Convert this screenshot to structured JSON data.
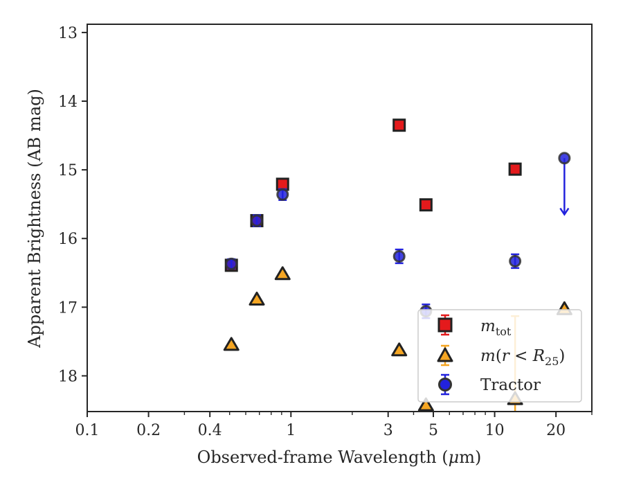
{
  "chart_data": {
    "type": "scatter",
    "xlabel": "Observed-frame Wavelength (μm)",
    "xlabel_parts": {
      "pre": "Observed-frame Wavelength (",
      "mu": "μ",
      "post": "m)"
    },
    "ylabel": "Apparent Brightness (AB mag)",
    "x_scale": "log",
    "xlim": [
      0.1,
      30
    ],
    "ylim": [
      18.52,
      12.88
    ],
    "y_inverted": true,
    "x_ticks": [
      {
        "value": 0.1,
        "label": "0.1"
      },
      {
        "value": 0.2,
        "label": "0.2"
      },
      {
        "value": 0.4,
        "label": "0.4"
      },
      {
        "value": 1,
        "label": "1"
      },
      {
        "value": 3,
        "label": "3"
      },
      {
        "value": 5,
        "label": "5"
      },
      {
        "value": 10,
        "label": "10"
      },
      {
        "value": 20,
        "label": "20"
      }
    ],
    "y_ticks": [
      {
        "value": 13,
        "label": "13"
      },
      {
        "value": 14,
        "label": "14"
      },
      {
        "value": 15,
        "label": "15"
      },
      {
        "value": 16,
        "label": "16"
      },
      {
        "value": 17,
        "label": "17"
      },
      {
        "value": 18,
        "label": "18"
      }
    ],
    "grid": false,
    "legend_position": "lower-right",
    "series": [
      {
        "key": "mtot",
        "legend_main": "m",
        "legend_sub": "tot",
        "marker": "square",
        "color": "#e41a1c",
        "edge_color": "#222222",
        "points": [
          {
            "x": 0.51,
            "y": 16.39,
            "err": 0.08
          },
          {
            "x": 0.68,
            "y": 15.74,
            "err": 0.08
          },
          {
            "x": 0.91,
            "y": 15.21,
            "err": 0.06
          },
          {
            "x": 3.4,
            "y": 14.35,
            "err": 0.06
          },
          {
            "x": 4.6,
            "y": 15.51,
            "err": 0.07
          },
          {
            "x": 12.6,
            "y": 14.99,
            "err": 0.08
          }
        ]
      },
      {
        "key": "mr25",
        "legend_main": "m",
        "legend_mid": "(",
        "legend_r": "r",
        "legend_lt": " < ",
        "legend_R": "R",
        "legend_sub": "25",
        "legend_end": ")",
        "marker": "triangle",
        "color": "#f5a623",
        "edge_color": "#222222",
        "points": [
          {
            "x": 0.51,
            "y": 17.54,
            "err": 0
          },
          {
            "x": 0.68,
            "y": 16.88,
            "err": 0
          },
          {
            "x": 0.91,
            "y": 16.51,
            "err": 0
          },
          {
            "x": 3.4,
            "y": 17.62,
            "err": 0
          },
          {
            "x": 4.6,
            "y": 18.42,
            "err": 0
          },
          {
            "x": 12.6,
            "y": 18.33,
            "err": 1.2
          },
          {
            "x": 22.0,
            "y": 17.02,
            "err": 0
          }
        ]
      },
      {
        "key": "tractor",
        "name": "Tractor",
        "marker": "circle",
        "color": "#2222dd",
        "edge_color": "#333333",
        "points": [
          {
            "x": 0.51,
            "y": 16.37,
            "err": 0.07
          },
          {
            "x": 0.68,
            "y": 15.74,
            "err": 0.08
          },
          {
            "x": 0.91,
            "y": 15.36,
            "err": 0.08
          },
          {
            "x": 3.4,
            "y": 16.26,
            "err": 0.1
          },
          {
            "x": 4.6,
            "y": 17.06,
            "err": 0.1
          },
          {
            "x": 12.6,
            "y": 16.33,
            "err": 0.1
          },
          {
            "x": 22.0,
            "y": 14.83,
            "err": 0,
            "upper_limit_arrow_to": 15.65
          }
        ]
      }
    ]
  }
}
